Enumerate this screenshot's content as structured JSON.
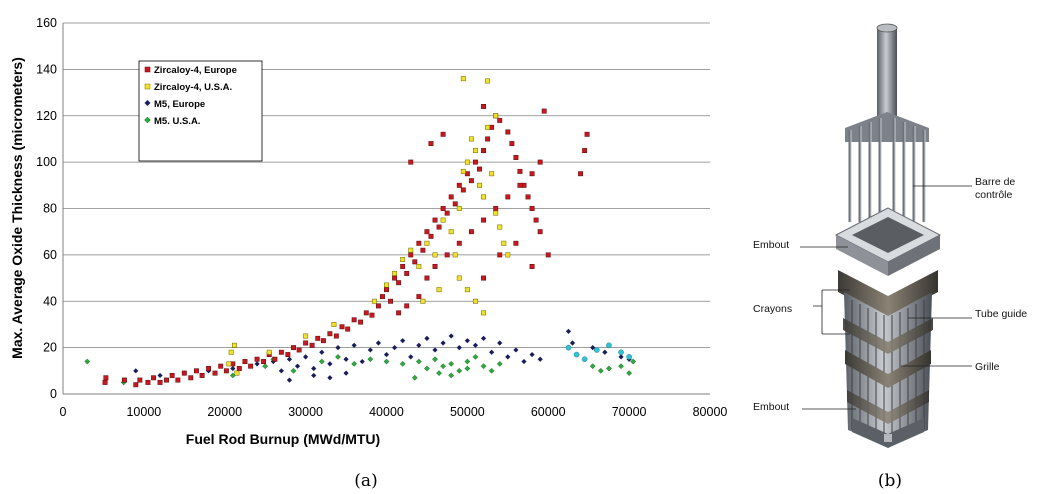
{
  "figure": {
    "caption_a": "(a)",
    "caption_b": "(b)"
  },
  "chart_data": {
    "type": "scatter",
    "title": "",
    "xlabel": "Fuel Rod Burnup (MWd/MTU)",
    "ylabel": "Max. Average Oxide Thickness (micrometers)",
    "xlim": [
      0,
      80000
    ],
    "ylim": [
      0,
      160
    ],
    "xticks": [
      "0",
      "10000",
      "20000",
      "30000",
      "40000",
      "50000",
      "60000",
      "70000",
      "80000"
    ],
    "yticks": [
      "0",
      "20",
      "40",
      "60",
      "80",
      "100",
      "120",
      "140",
      "160"
    ],
    "grid": "horizontal",
    "legend_position": "top-left",
    "series": [
      {
        "name": "Zircaloy-4, Europe",
        "marker": "square",
        "color": "#c8171e",
        "points": [
          [
            5200,
            5
          ],
          [
            5300,
            7
          ],
          [
            7600,
            6
          ],
          [
            9000,
            4
          ],
          [
            9500,
            6
          ],
          [
            10500,
            5
          ],
          [
            11200,
            7
          ],
          [
            12000,
            5
          ],
          [
            12800,
            6
          ],
          [
            13500,
            8
          ],
          [
            14200,
            6
          ],
          [
            15000,
            9
          ],
          [
            15800,
            7
          ],
          [
            16500,
            10
          ],
          [
            17200,
            8
          ],
          [
            18000,
            11
          ],
          [
            18800,
            9
          ],
          [
            19500,
            12
          ],
          [
            20200,
            10
          ],
          [
            21000,
            13
          ],
          [
            21800,
            11
          ],
          [
            22500,
            14
          ],
          [
            23200,
            12
          ],
          [
            24000,
            15
          ],
          [
            24800,
            14
          ],
          [
            25500,
            17
          ],
          [
            26200,
            15
          ],
          [
            27000,
            18
          ],
          [
            27800,
            17
          ],
          [
            28500,
            20
          ],
          [
            29200,
            19
          ],
          [
            30000,
            22
          ],
          [
            30800,
            21
          ],
          [
            31500,
            24
          ],
          [
            32200,
            23
          ],
          [
            33000,
            26
          ],
          [
            33800,
            25
          ],
          [
            34500,
            29
          ],
          [
            35200,
            28
          ],
          [
            36000,
            32
          ],
          [
            36800,
            31
          ],
          [
            37500,
            35
          ],
          [
            38200,
            34
          ],
          [
            39000,
            38
          ],
          [
            39500,
            42
          ],
          [
            40000,
            45
          ],
          [
            40500,
            40
          ],
          [
            41000,
            50
          ],
          [
            41500,
            48
          ],
          [
            42000,
            55
          ],
          [
            42500,
            52
          ],
          [
            43000,
            60
          ],
          [
            43500,
            57
          ],
          [
            44000,
            65
          ],
          [
            44500,
            62
          ],
          [
            45000,
            70
          ],
          [
            45500,
            68
          ],
          [
            46000,
            75
          ],
          [
            46500,
            72
          ],
          [
            47000,
            80
          ],
          [
            47500,
            78
          ],
          [
            48000,
            85
          ],
          [
            48500,
            82
          ],
          [
            49000,
            90
          ],
          [
            49500,
            88
          ],
          [
            50000,
            95
          ],
          [
            50500,
            92
          ],
          [
            51000,
            100
          ],
          [
            51500,
            97
          ],
          [
            52000,
            105
          ],
          [
            52500,
            110
          ],
          [
            53000,
            115
          ],
          [
            53500,
            120
          ],
          [
            54000,
            118
          ],
          [
            55000,
            113
          ],
          [
            55500,
            108
          ],
          [
            56000,
            102
          ],
          [
            56500,
            96
          ],
          [
            57000,
            90
          ],
          [
            57500,
            85
          ],
          [
            58000,
            80
          ],
          [
            58500,
            75
          ],
          [
            59000,
            70
          ],
          [
            59500,
            122
          ],
          [
            60000,
            60
          ],
          [
            52000,
            124
          ],
          [
            47000,
            112
          ],
          [
            45500,
            108
          ],
          [
            43000,
            100
          ],
          [
            64000,
            95
          ],
          [
            64500,
            105
          ],
          [
            64800,
            112
          ],
          [
            41500,
            35
          ],
          [
            42500,
            38
          ],
          [
            44000,
            42
          ],
          [
            45000,
            50
          ],
          [
            46000,
            55
          ],
          [
            47500,
            60
          ],
          [
            49000,
            65
          ],
          [
            50500,
            70
          ],
          [
            52000,
            75
          ],
          [
            53500,
            80
          ],
          [
            55000,
            85
          ],
          [
            56500,
            90
          ],
          [
            58000,
            95
          ],
          [
            59000,
            100
          ],
          [
            54000,
            60
          ],
          [
            56000,
            65
          ],
          [
            58000,
            55
          ],
          [
            52000,
            50
          ]
        ]
      },
      {
        "name": "Zircaloy-4, U.S.A.",
        "marker": "square",
        "color": "#f2e227",
        "points": [
          [
            20500,
            13
          ],
          [
            20800,
            18
          ],
          [
            21200,
            21
          ],
          [
            21500,
            9
          ],
          [
            25500,
            18
          ],
          [
            30000,
            25
          ],
          [
            33500,
            30
          ],
          [
            38500,
            40
          ],
          [
            40000,
            47
          ],
          [
            41000,
            52
          ],
          [
            42000,
            58
          ],
          [
            43000,
            62
          ],
          [
            44000,
            55
          ],
          [
            45000,
            65
          ],
          [
            46000,
            60
          ],
          [
            47000,
            75
          ],
          [
            48000,
            70
          ],
          [
            49000,
            80
          ],
          [
            49500,
            96
          ],
          [
            50000,
            100
          ],
          [
            50500,
            110
          ],
          [
            51000,
            105
          ],
          [
            51500,
            90
          ],
          [
            52000,
            85
          ],
          [
            52500,
            115
          ],
          [
            53000,
            95
          ],
          [
            53500,
            78
          ],
          [
            54000,
            72
          ],
          [
            54500,
            65
          ],
          [
            55000,
            60
          ],
          [
            49500,
            136
          ],
          [
            52500,
            135
          ],
          [
            53500,
            120
          ],
          [
            48500,
            60
          ],
          [
            49000,
            50
          ],
          [
            50000,
            45
          ],
          [
            51000,
            40
          ],
          [
            52000,
            35
          ],
          [
            46500,
            45
          ],
          [
            44500,
            40
          ]
        ]
      },
      {
        "name": "M5, Europe",
        "marker": "diamond",
        "color": "#1a1d5c",
        "points": [
          [
            9000,
            10
          ],
          [
            12000,
            8
          ],
          [
            15000,
            9
          ],
          [
            18000,
            10
          ],
          [
            21000,
            11
          ],
          [
            24000,
            13
          ],
          [
            26000,
            14
          ],
          [
            27000,
            10
          ],
          [
            28000,
            15
          ],
          [
            29000,
            12
          ],
          [
            30000,
            16
          ],
          [
            31000,
            11
          ],
          [
            32000,
            18
          ],
          [
            33000,
            13
          ],
          [
            34000,
            20
          ],
          [
            35000,
            15
          ],
          [
            36000,
            21
          ],
          [
            37000,
            14
          ],
          [
            38000,
            19
          ],
          [
            39000,
            22
          ],
          [
            40000,
            17
          ],
          [
            41000,
            20
          ],
          [
            42000,
            23
          ],
          [
            43000,
            16
          ],
          [
            44000,
            21
          ],
          [
            45000,
            24
          ],
          [
            46000,
            19
          ],
          [
            47000,
            22
          ],
          [
            48000,
            25
          ],
          [
            49000,
            20
          ],
          [
            50000,
            23
          ],
          [
            51000,
            21
          ],
          [
            52000,
            24
          ],
          [
            53000,
            18
          ],
          [
            54000,
            22
          ],
          [
            55000,
            16
          ],
          [
            56000,
            19
          ],
          [
            57000,
            14
          ],
          [
            58000,
            17
          ],
          [
            59000,
            15
          ],
          [
            62500,
            27
          ],
          [
            63000,
            22
          ],
          [
            65500,
            20
          ],
          [
            67000,
            18
          ],
          [
            69000,
            16
          ],
          [
            70000,
            15
          ],
          [
            28000,
            6
          ],
          [
            31000,
            8
          ],
          [
            33000,
            7
          ],
          [
            35000,
            9
          ]
        ]
      },
      {
        "name": "M5. U.S.A.",
        "marker": "diamond",
        "color": "#2cac3c",
        "points": [
          [
            3000,
            14
          ],
          [
            7500,
            5
          ],
          [
            21000,
            8
          ],
          [
            25000,
            12
          ],
          [
            26000,
            15
          ],
          [
            28500,
            10
          ],
          [
            32000,
            14
          ],
          [
            34000,
            16
          ],
          [
            36000,
            13
          ],
          [
            38000,
            15
          ],
          [
            40000,
            14
          ],
          [
            42000,
            13
          ],
          [
            44000,
            14
          ],
          [
            45000,
            11
          ],
          [
            46000,
            15
          ],
          [
            47000,
            12
          ],
          [
            48000,
            13
          ],
          [
            49000,
            10
          ],
          [
            50000,
            14
          ],
          [
            51000,
            16
          ],
          [
            52000,
            12
          ],
          [
            53000,
            10
          ],
          [
            54000,
            13
          ],
          [
            43500,
            7
          ],
          [
            46500,
            9
          ],
          [
            48000,
            8
          ],
          [
            50000,
            11
          ],
          [
            65500,
            12
          ],
          [
            66500,
            10
          ],
          [
            67500,
            11
          ],
          [
            69000,
            12
          ],
          [
            70000,
            9
          ],
          [
            70500,
            14
          ]
        ]
      },
      {
        "name": "",
        "marker": "circle",
        "color": "#2ec4d8",
        "points": [
          [
            62500,
            20
          ],
          [
            63500,
            17
          ],
          [
            64500,
            15
          ],
          [
            66000,
            19
          ],
          [
            67500,
            21
          ],
          [
            69000,
            18
          ],
          [
            70000,
            16
          ]
        ]
      }
    ]
  },
  "schematic": {
    "labels": {
      "barre_de_controle_1": "Barre de",
      "barre_de_controle_2": "contrôle",
      "embout_top": "Embout",
      "crayons": "Crayons",
      "tube_guide": "Tube guide",
      "grille": "Grille",
      "embout_bottom": "Embout"
    }
  }
}
